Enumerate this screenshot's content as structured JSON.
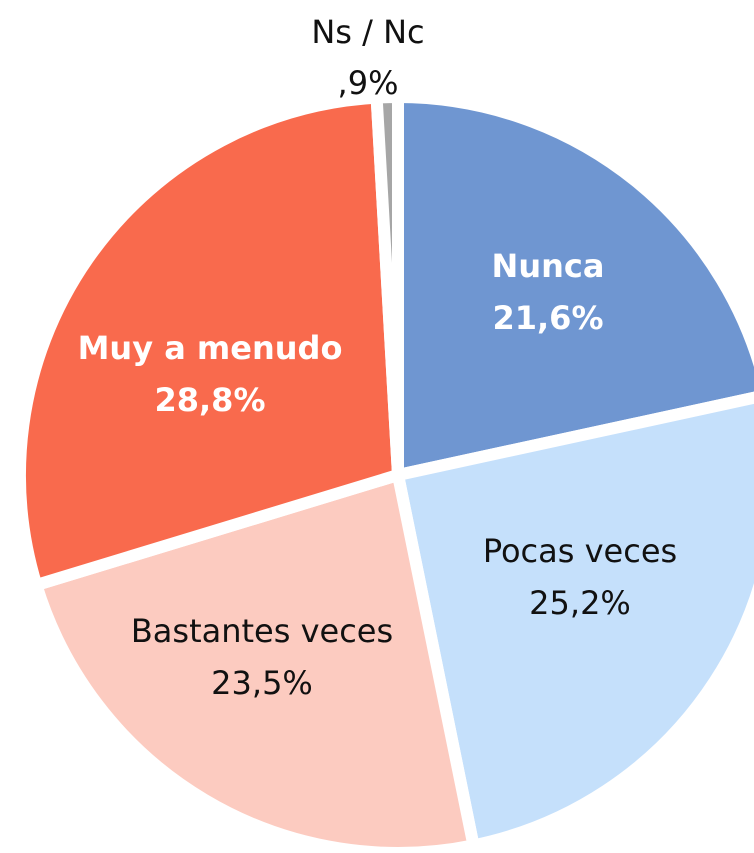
{
  "chart_data": {
    "type": "pie",
    "categories": [
      "Nunca",
      "Pocas veces",
      "Bastantes veces",
      "Muy a menudo",
      "Ns / Nc"
    ],
    "values": [
      21.6,
      25.2,
      23.5,
      28.8,
      0.9
    ],
    "value_labels": [
      "21,6%",
      "25,2%",
      "23,5%",
      "28,8%",
      ",9%"
    ],
    "colors": [
      "#6f96d1",
      "#c5e0fb",
      "#fccbc0",
      "#f96a4d",
      "#a6a6a6"
    ]
  }
}
